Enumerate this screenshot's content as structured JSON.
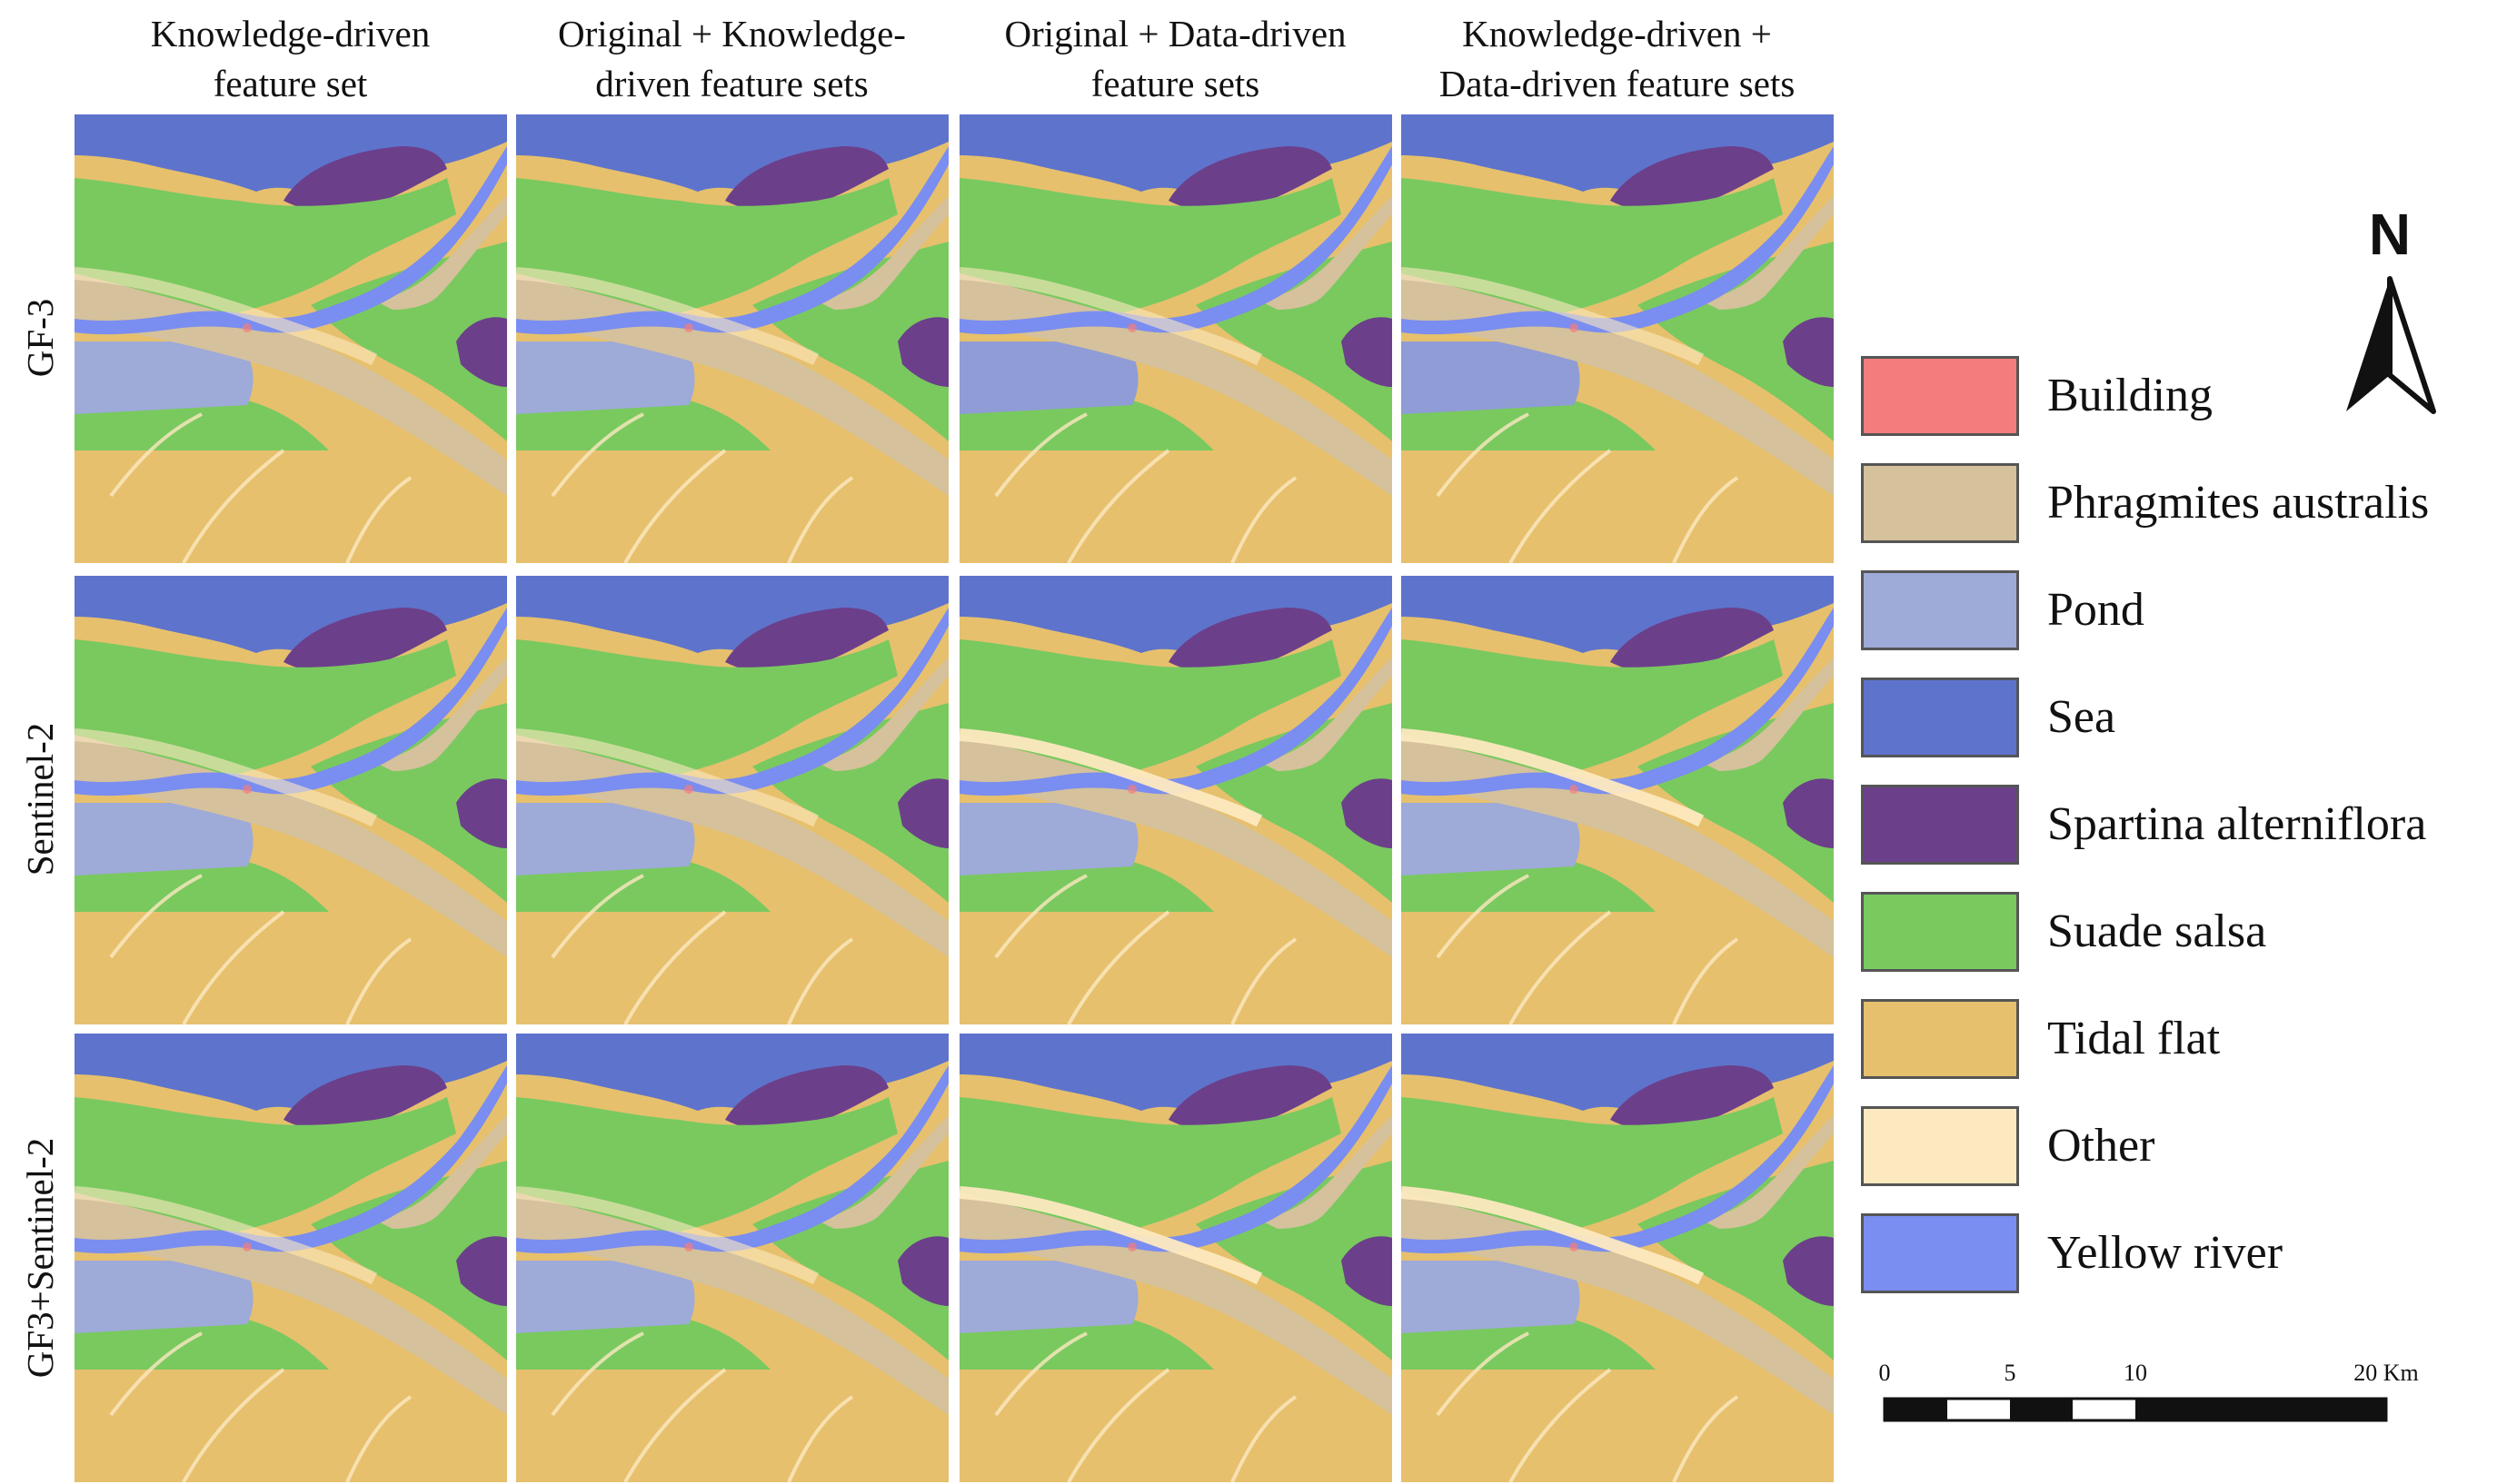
{
  "columns": [
    {
      "line1": "Knowledge-driven",
      "line2": "feature set"
    },
    {
      "line1": "Original + Knowledge-",
      "line2": "driven feature sets"
    },
    {
      "line1": "Original + Data-driven",
      "line2": "feature sets"
    },
    {
      "line1": "Knowledge-driven +",
      "line2": "Data-driven feature sets"
    }
  ],
  "rows": [
    {
      "label": "GF-3"
    },
    {
      "label": "Sentinel-2"
    },
    {
      "label": "GF3+Sentinel-2"
    }
  ],
  "legend": [
    {
      "label": "Building",
      "color": "#f47c7c"
    },
    {
      "label": "Phragmites australis",
      "color": "#d5c19b"
    },
    {
      "label": "Pond",
      "color": "#9eaad8"
    },
    {
      "label": "Sea",
      "color": "#5e73cc"
    },
    {
      "label": "Spartina alterniflora",
      "color": "#6c3f8a"
    },
    {
      "label": "Suade salsa",
      "color": "#79c95f"
    },
    {
      "label": "Tidal flat",
      "color": "#e6c06d"
    },
    {
      "label": "Other",
      "color": "#fde9c0"
    },
    {
      "label": "Yellow river",
      "color": "#7a8df0"
    }
  ],
  "north_arrow": {
    "label": "N"
  },
  "scale_bar": {
    "ticks": [
      "0",
      "5",
      "10",
      "20 Km"
    ]
  }
}
